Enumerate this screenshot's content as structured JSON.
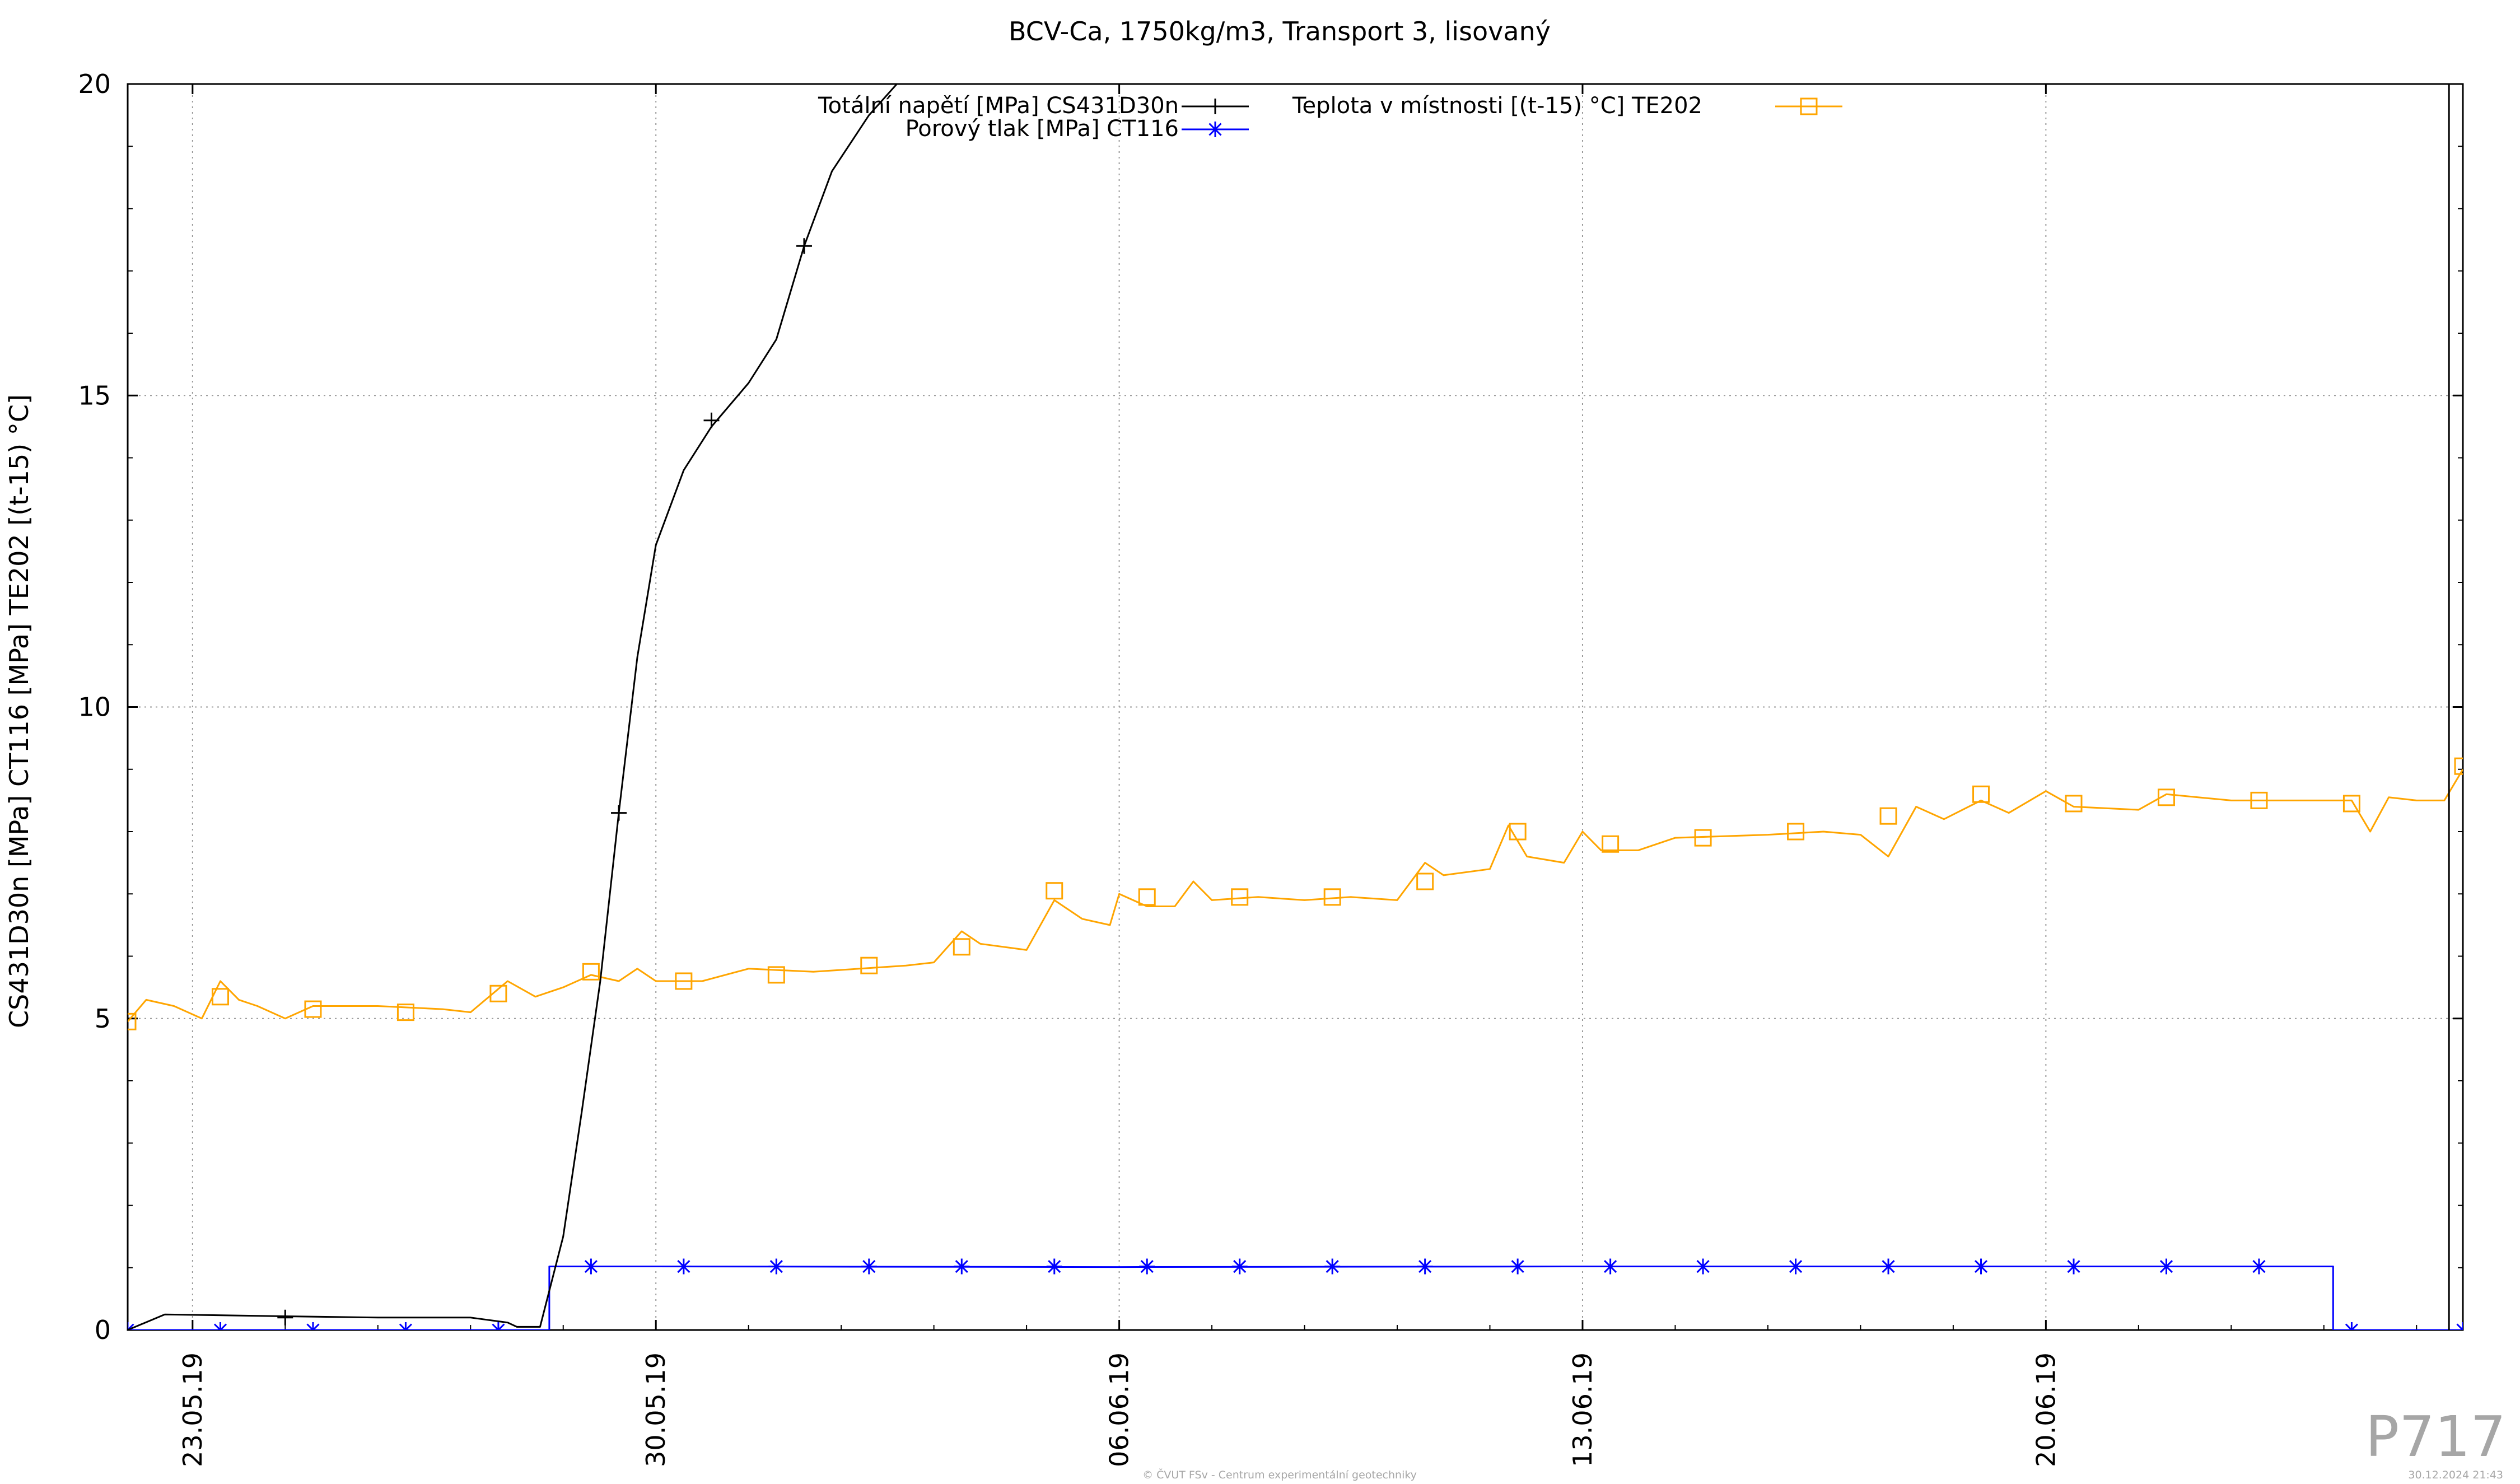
{
  "page": {
    "watermark": "P717",
    "footer_center": "© ČVUT FSv - Centrum experimentální geotechniky",
    "footer_right": "30.12.2024 21:43"
  },
  "chart_data": {
    "type": "line",
    "title": "BCV-Ca, 1750kg/m3, Transport 3, lisovaný",
    "ylabel": "CS431D30n [MPa] CT116 [MPa] TE202 [(t-15) °C]",
    "xlabel": "",
    "ylim": [
      0,
      20
    ],
    "xlim": [
      -0.7,
      24.5
    ],
    "x_unit": "days since 23.05.19",
    "y_ticks": [
      0,
      5,
      10,
      15,
      20
    ],
    "x_ticks": [
      {
        "x": 0,
        "label": "23.05.19"
      },
      {
        "x": 5,
        "label": "30.05.19"
      },
      {
        "x": 10,
        "label": "06.06.19"
      },
      {
        "x": 15,
        "label": "13.06.19"
      },
      {
        "x": 20,
        "label": "20.06.19"
      }
    ],
    "grid": true,
    "legend_position": "top",
    "series": [
      {
        "name": "Totální napětí [MPa] CS431D30n",
        "color": "#000000",
        "marker": "plus",
        "points": [
          [
            -0.7,
            0.0
          ],
          [
            -0.3,
            0.25
          ],
          [
            1.0,
            0.22
          ],
          [
            2.0,
            0.2
          ],
          [
            3.0,
            0.2
          ],
          [
            3.4,
            0.12
          ],
          [
            3.5,
            0.05
          ],
          [
            3.75,
            0.05
          ],
          [
            4.0,
            1.5
          ],
          [
            4.2,
            3.5
          ],
          [
            4.4,
            5.6
          ],
          [
            4.6,
            8.3
          ],
          [
            4.8,
            10.8
          ],
          [
            5.0,
            12.6
          ],
          [
            5.3,
            13.8
          ],
          [
            5.6,
            14.5
          ],
          [
            6.0,
            15.2
          ],
          [
            6.3,
            15.9
          ],
          [
            6.6,
            17.4
          ],
          [
            6.9,
            18.6
          ],
          [
            7.3,
            19.5
          ],
          [
            7.6,
            20.0
          ]
        ],
        "markers_at": [
          [
            1.0,
            0.2
          ],
          [
            4.6,
            8.3
          ],
          [
            5.6,
            14.6
          ],
          [
            6.6,
            17.4
          ]
        ]
      },
      {
        "name": "Porový tlak [MPa] CT116",
        "color": "#0000ff",
        "marker": "star",
        "points": [
          [
            -0.7,
            0.0
          ],
          [
            3.85,
            0.0
          ],
          [
            3.85,
            1.02
          ],
          [
            5.0,
            1.02
          ],
          [
            10.0,
            1.01
          ],
          [
            15.0,
            1.02
          ],
          [
            20.0,
            1.02
          ],
          [
            23.1,
            1.02
          ],
          [
            23.1,
            0.0
          ],
          [
            24.5,
            0.0
          ]
        ],
        "markers_at": [
          [
            -0.7,
            0.0
          ],
          [
            0.3,
            0.0
          ],
          [
            1.3,
            0.0
          ],
          [
            2.3,
            0.0
          ],
          [
            3.3,
            0.0
          ],
          [
            4.3,
            1.02
          ],
          [
            5.3,
            1.02
          ],
          [
            6.3,
            1.02
          ],
          [
            7.3,
            1.02
          ],
          [
            8.3,
            1.02
          ],
          [
            9.3,
            1.02
          ],
          [
            10.3,
            1.02
          ],
          [
            11.3,
            1.02
          ],
          [
            12.3,
            1.02
          ],
          [
            13.3,
            1.02
          ],
          [
            14.3,
            1.02
          ],
          [
            15.3,
            1.02
          ],
          [
            16.3,
            1.02
          ],
          [
            17.3,
            1.02
          ],
          [
            18.3,
            1.02
          ],
          [
            19.3,
            1.02
          ],
          [
            20.3,
            1.02
          ],
          [
            21.3,
            1.02
          ],
          [
            22.3,
            1.02
          ],
          [
            23.3,
            0.0
          ],
          [
            24.5,
            0.0
          ]
        ]
      },
      {
        "name": "Teplota v místnosti [(t-15) °C] TE202",
        "color": "#ffa500",
        "marker": "square",
        "points": [
          [
            -0.7,
            4.95
          ],
          [
            -0.5,
            5.3
          ],
          [
            -0.2,
            5.2
          ],
          [
            0.1,
            5.0
          ],
          [
            0.3,
            5.6
          ],
          [
            0.5,
            5.3
          ],
          [
            0.7,
            5.2
          ],
          [
            1.0,
            5.0
          ],
          [
            1.3,
            5.2
          ],
          [
            2.0,
            5.2
          ],
          [
            2.7,
            5.15
          ],
          [
            3.0,
            5.1
          ],
          [
            3.4,
            5.6
          ],
          [
            3.7,
            5.35
          ],
          [
            4.0,
            5.5
          ],
          [
            4.3,
            5.7
          ],
          [
            4.6,
            5.6
          ],
          [
            4.8,
            5.8
          ],
          [
            5.0,
            5.6
          ],
          [
            5.5,
            5.6
          ],
          [
            6.0,
            5.8
          ],
          [
            6.7,
            5.75
          ],
          [
            7.2,
            5.8
          ],
          [
            7.7,
            5.85
          ],
          [
            8.0,
            5.9
          ],
          [
            8.3,
            6.4
          ],
          [
            8.5,
            6.2
          ],
          [
            9.0,
            6.1
          ],
          [
            9.3,
            6.9
          ],
          [
            9.6,
            6.6
          ],
          [
            9.9,
            6.5
          ],
          [
            10.0,
            7.0
          ],
          [
            10.3,
            6.8
          ],
          [
            10.6,
            6.8
          ],
          [
            10.8,
            7.2
          ],
          [
            11.0,
            6.9
          ],
          [
            11.5,
            6.95
          ],
          [
            12.0,
            6.9
          ],
          [
            12.5,
            6.95
          ],
          [
            13.0,
            6.9
          ],
          [
            13.3,
            7.5
          ],
          [
            13.5,
            7.3
          ],
          [
            14.0,
            7.4
          ],
          [
            14.2,
            8.1
          ],
          [
            14.4,
            7.6
          ],
          [
            14.8,
            7.5
          ],
          [
            15.0,
            8.0
          ],
          [
            15.2,
            7.7
          ],
          [
            15.6,
            7.7
          ],
          [
            16.0,
            7.9
          ],
          [
            17.0,
            7.95
          ],
          [
            17.6,
            8.0
          ],
          [
            18.0,
            7.95
          ],
          [
            18.3,
            7.6
          ],
          [
            18.6,
            8.4
          ],
          [
            18.9,
            8.2
          ],
          [
            19.3,
            8.5
          ],
          [
            19.6,
            8.3
          ],
          [
            20.0,
            8.65
          ],
          [
            20.3,
            8.4
          ],
          [
            21.0,
            8.35
          ],
          [
            21.3,
            8.6
          ],
          [
            22.0,
            8.5
          ],
          [
            22.6,
            8.5
          ],
          [
            23.3,
            8.5
          ],
          [
            23.5,
            8.0
          ],
          [
            23.7,
            8.55
          ],
          [
            24.0,
            8.5
          ],
          [
            24.3,
            8.5
          ],
          [
            24.5,
            9.0
          ]
        ],
        "markers_at": [
          [
            -0.7,
            4.95
          ],
          [
            0.3,
            5.35
          ],
          [
            1.3,
            5.15
          ],
          [
            2.3,
            5.1
          ],
          [
            3.3,
            5.4
          ],
          [
            4.3,
            5.75
          ],
          [
            5.3,
            5.6
          ],
          [
            6.3,
            5.7
          ],
          [
            7.3,
            5.85
          ],
          [
            8.3,
            6.15
          ],
          [
            9.3,
            7.05
          ],
          [
            10.3,
            6.95
          ],
          [
            11.3,
            6.95
          ],
          [
            12.3,
            6.95
          ],
          [
            13.3,
            7.2
          ],
          [
            14.3,
            8.0
          ],
          [
            15.3,
            7.8
          ],
          [
            16.3,
            7.9
          ],
          [
            17.3,
            8.0
          ],
          [
            18.3,
            8.25
          ],
          [
            19.3,
            8.6
          ],
          [
            20.3,
            8.45
          ],
          [
            21.3,
            8.55
          ],
          [
            22.3,
            8.5
          ],
          [
            23.3,
            8.45
          ],
          [
            24.5,
            9.05
          ]
        ]
      }
    ]
  }
}
